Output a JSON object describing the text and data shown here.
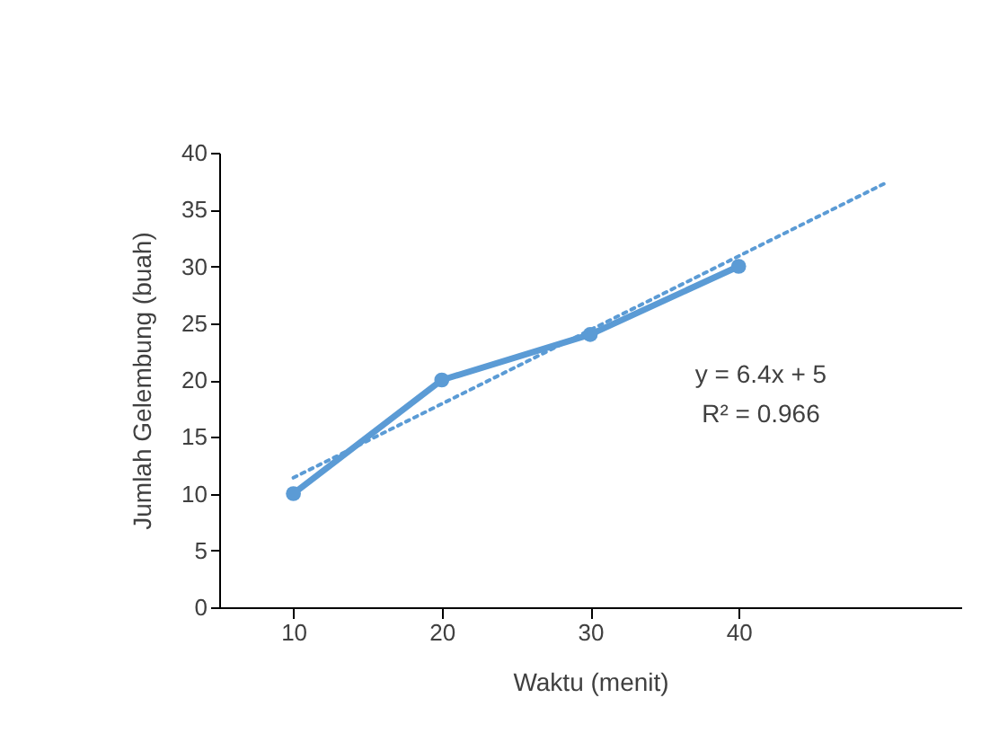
{
  "chart_data": {
    "type": "line",
    "xlabel": "Waktu (menit)",
    "ylabel": "Jumlah Gelembung (buah)",
    "xlim": [
      5,
      55
    ],
    "xticks": [
      10,
      20,
      30,
      40
    ],
    "ylim": [
      0,
      40
    ],
    "yticks": [
      0,
      5,
      10,
      15,
      20,
      25,
      30,
      35,
      40
    ],
    "grid": false,
    "series": [
      {
        "color": "#5b9bd5",
        "x": [
          10,
          20,
          30,
          40
        ],
        "values": [
          10,
          20,
          24,
          30
        ],
        "marker": "circle",
        "line_style": "solid"
      },
      {
        "color": "#5b9bd5",
        "x": [
          10,
          50
        ],
        "values": [
          11.4,
          37.4
        ],
        "marker": "none",
        "line_style": "dotted"
      }
    ],
    "annotations": [
      "y = 6.4x + 5",
      "R² = 0.966"
    ]
  }
}
